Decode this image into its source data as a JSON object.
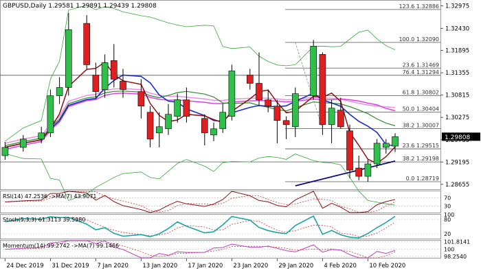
{
  "main_title": "GBPUSD,Daily  1.29581 1.29891 1.29439 1.29808",
  "colors": {
    "up": "#2fbf4a",
    "down": "#e02020",
    "bb": "#33aa33",
    "ma_blue": "#1a2ccc",
    "ma_darkred": "#8b1010",
    "ma_green": "#2b8a2b",
    "ma_magenta": "#e040e0",
    "ma_pink": "#e890e0",
    "ma_navy": "#0b0b7a",
    "fib": "#505050",
    "osc_line": "#1aa3a3",
    "osc_signal": "#cc3333",
    "rsi_line": "#8b1010"
  },
  "chart_data": [
    {
      "type": "candlestick",
      "name": "main",
      "symbol": "GBPUSD,Daily",
      "ohlc": {
        "open": 1.29581,
        "high": 1.29891,
        "low": 1.29439,
        "close": 1.29808
      },
      "x_tick_labels": [
        "24 Dec 2019",
        "31 Dec 2019",
        "7 Jan 2020",
        "13 Jan 2020",
        "17 Jan 2020",
        "23 Jan 2020",
        "29 Jan 2020",
        "4 Feb 2020",
        "10 Feb 2020"
      ],
      "x_tick_bars": [
        0,
        5,
        10,
        15,
        20,
        25,
        30,
        35,
        40
      ],
      "y_tick_labels": [
        "1.32975",
        "1.32430",
        "1.31895",
        "1.31355",
        "1.30815",
        "1.30275",
        "1.29735",
        "1.29195",
        "1.28655"
      ],
      "y_tick_values": [
        1.32975,
        1.3243,
        1.31895,
        1.31355,
        1.30815,
        1.30275,
        1.29735,
        1.29195,
        1.28655
      ],
      "ylim": [
        1.2857,
        1.3305
      ],
      "current_price_label": "1.29808",
      "current_price": 1.29808,
      "fib_levels": [
        {
          "label": "123.6 1.32886",
          "value": 1.32886
        },
        {
          "label": "100.0 1.32090",
          "value": 1.3209
        },
        {
          "label": "23.6 1.31469",
          "value": 1.31469
        },
        {
          "label": "76.4 1.31294",
          "value": 1.31294
        },
        {
          "label": "61.8 1.30802",
          "value": 1.30802
        },
        {
          "label": "50.0 1.30404",
          "value": 1.30404
        },
        {
          "label": "38.2 1.30007",
          "value": 1.30007
        },
        {
          "label": "23.6 1.29515",
          "value": 1.29515
        },
        {
          "label": "38.2 1.29198",
          "value": 1.29198
        },
        {
          "label": "0.0 1.28719",
          "value": 1.28719
        }
      ],
      "candles": [
        {
          "o": 1.2935,
          "h": 1.2968,
          "l": 1.2925,
          "c": 1.2955
        },
        {
          "o": 1.2955,
          "h": 1.2985,
          "l": 1.2945,
          "c": 1.2975
        },
        {
          "o": 1.2975,
          "h": 1.3005,
          "l": 1.2965,
          "c": 1.299
        },
        {
          "o": 1.299,
          "h": 1.3095,
          "l": 1.298,
          "c": 1.308
        },
        {
          "o": 1.308,
          "h": 1.3125,
          "l": 1.306,
          "c": 1.31
        },
        {
          "o": 1.31,
          "h": 1.328,
          "l": 1.308,
          "c": 1.324
        },
        {
          "o": 1.3255,
          "h": 1.3275,
          "l": 1.3145,
          "c": 1.3155
        },
        {
          "o": 1.313,
          "h": 1.316,
          "l": 1.3075,
          "c": 1.309
        },
        {
          "o": 1.3095,
          "h": 1.318,
          "l": 1.3075,
          "c": 1.316
        },
        {
          "o": 1.3165,
          "h": 1.3205,
          "l": 1.31,
          "c": 1.312
        },
        {
          "o": 1.3115,
          "h": 1.3145,
          "l": 1.3075,
          "c": 1.3095
        },
        {
          "o": 1.309,
          "h": 1.312,
          "l": 1.3025,
          "c": 1.3055
        },
        {
          "o": 1.304,
          "h": 1.3055,
          "l": 1.2955,
          "c": 1.2975
        },
        {
          "o": 1.299,
          "h": 1.304,
          "l": 1.2955,
          "c": 1.3005
        },
        {
          "o": 1.3,
          "h": 1.306,
          "l": 1.2985,
          "c": 1.3035
        },
        {
          "o": 1.303,
          "h": 1.3085,
          "l": 1.3015,
          "c": 1.307
        },
        {
          "o": 1.307,
          "h": 1.31,
          "l": 1.3015,
          "c": 1.303
        },
        {
          "o": 1.3025,
          "h": 1.3035,
          "l": 1.296,
          "c": 1.299
        },
        {
          "o": 1.2985,
          "h": 1.3015,
          "l": 1.297,
          "c": 1.3
        },
        {
          "o": 1.3,
          "h": 1.306,
          "l": 1.299,
          "c": 1.304
        },
        {
          "o": 1.303,
          "h": 1.3155,
          "l": 1.302,
          "c": 1.314
        },
        {
          "o": 1.313,
          "h": 1.3145,
          "l": 1.3095,
          "c": 1.311
        },
        {
          "o": 1.311,
          "h": 1.3185,
          "l": 1.3055,
          "c": 1.307
        },
        {
          "o": 1.307,
          "h": 1.3095,
          "l": 1.304,
          "c": 1.3055
        },
        {
          "o": 1.3055,
          "h": 1.307,
          "l": 1.2965,
          "c": 1.302
        },
        {
          "o": 1.302,
          "h": 1.303,
          "l": 1.2975,
          "c": 1.301
        },
        {
          "o": 1.3005,
          "h": 1.31,
          "l": 1.298,
          "c": 1.3085
        },
        {
          "o": 1.308,
          "h": 1.3215,
          "l": 1.307,
          "c": 1.32
        },
        {
          "o": 1.318,
          "h": 1.3185,
          "l": 1.2985,
          "c": 1.301
        },
        {
          "o": 1.301,
          "h": 1.307,
          "l": 1.2965,
          "c": 1.305
        },
        {
          "o": 1.3045,
          "h": 1.3075,
          "l": 1.3,
          "c": 1.3005
        },
        {
          "o": 1.2995,
          "h": 1.301,
          "l": 1.288,
          "c": 1.29
        },
        {
          "o": 1.2905,
          "h": 1.2935,
          "l": 1.2875,
          "c": 1.2885
        },
        {
          "o": 1.2885,
          "h": 1.2925,
          "l": 1.2872,
          "c": 1.2915
        },
        {
          "o": 1.2915,
          "h": 1.2975,
          "l": 1.2905,
          "c": 1.2965
        },
        {
          "o": 1.2955,
          "h": 1.2975,
          "l": 1.294,
          "c": 1.2965
        },
        {
          "o": 1.29581,
          "h": 1.29891,
          "l": 1.29439,
          "c": 1.29808
        }
      ],
      "candle_bars": [
        0,
        2,
        4,
        5,
        6,
        7,
        9,
        10,
        11,
        12,
        13,
        15,
        16,
        17,
        18,
        19,
        20,
        22,
        23,
        24,
        25,
        27,
        28,
        29,
        30,
        31,
        32,
        34,
        35,
        36,
        37,
        38,
        39,
        40,
        41,
        42,
        43
      ]
    },
    {
      "type": "line",
      "name": "rsi",
      "label": "RSI(14) 47.2536  ->MA(7) 43.9071",
      "y_tick_labels": [
        "70",
        "30"
      ],
      "y_tick_values": [
        70,
        30
      ],
      "ylim": [
        0,
        100
      ]
    },
    {
      "type": "line",
      "name": "stochastic",
      "label": "Stoch(5,3,3) 61.3113 39.5980",
      "y_tick_labels": [
        "100",
        "80",
        "20"
      ],
      "y_tick_values": [
        100,
        80,
        20
      ],
      "ylim": [
        0,
        100
      ]
    },
    {
      "type": "line",
      "name": "momentum",
      "label": "Momentum(14) 99.2742 ->MA(7) 99.1466",
      "y_tick_labels": [
        "101.8141",
        "100",
        "98.2540"
      ],
      "y_tick_values": [
        101.8141,
        100,
        98.254
      ],
      "ylim": [
        97.9,
        102.1
      ]
    }
  ]
}
